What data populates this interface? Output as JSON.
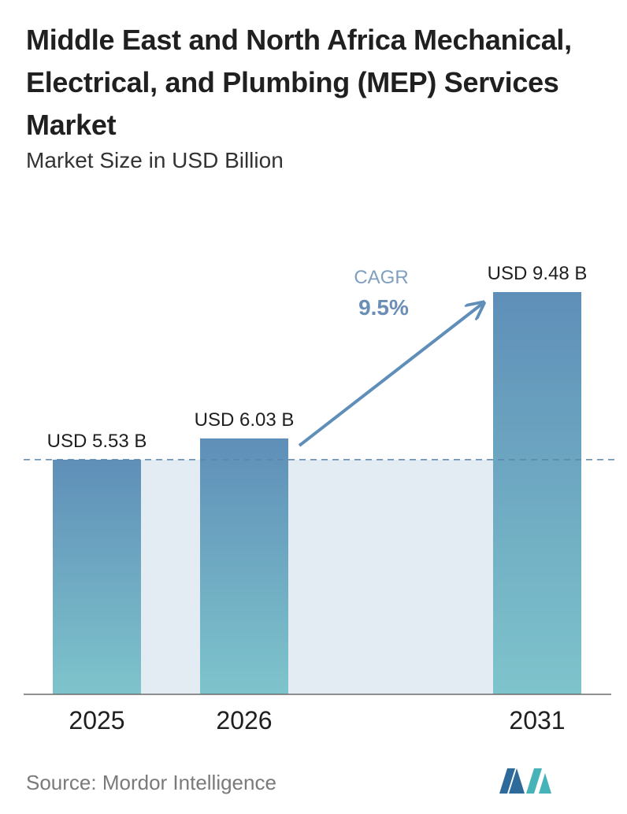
{
  "header": {
    "title": "Middle East and North Africa Mechanical, Electrical, and Plumbing (MEP) Services Market",
    "subtitle": "Market Size in USD Billion"
  },
  "chart_data": {
    "type": "bar",
    "title": "Middle East and North Africa Mechanical, Electrical, and Plumbing (MEP) Services Market",
    "subtitle": "Market Size in USD Billion",
    "categories": [
      "2025",
      "2026",
      "2031"
    ],
    "values": [
      5.53,
      6.03,
      9.48
    ],
    "value_labels": [
      "USD 5.53 B",
      "USD 6.03 B",
      "USD 9.48 B"
    ],
    "unit": "USD Billion",
    "grid": false,
    "annotation": {
      "label": "CAGR",
      "value": "9.5%"
    },
    "reference_line": {
      "value": 5.53,
      "style": "dashed"
    },
    "colors": {
      "bar_top": "#5f8fb8",
      "bar_bottom": "#7ec4cc",
      "band": "#e3ebf3",
      "arrow": "#5f8fb8",
      "cagr_label": "#7f9fbf",
      "cagr_value": "#6a8eb6"
    }
  },
  "footer": {
    "source": "Source: Mordor Intelligence",
    "logo_colors": {
      "left": "#2f6b9a",
      "right": "#46b3b8"
    }
  }
}
